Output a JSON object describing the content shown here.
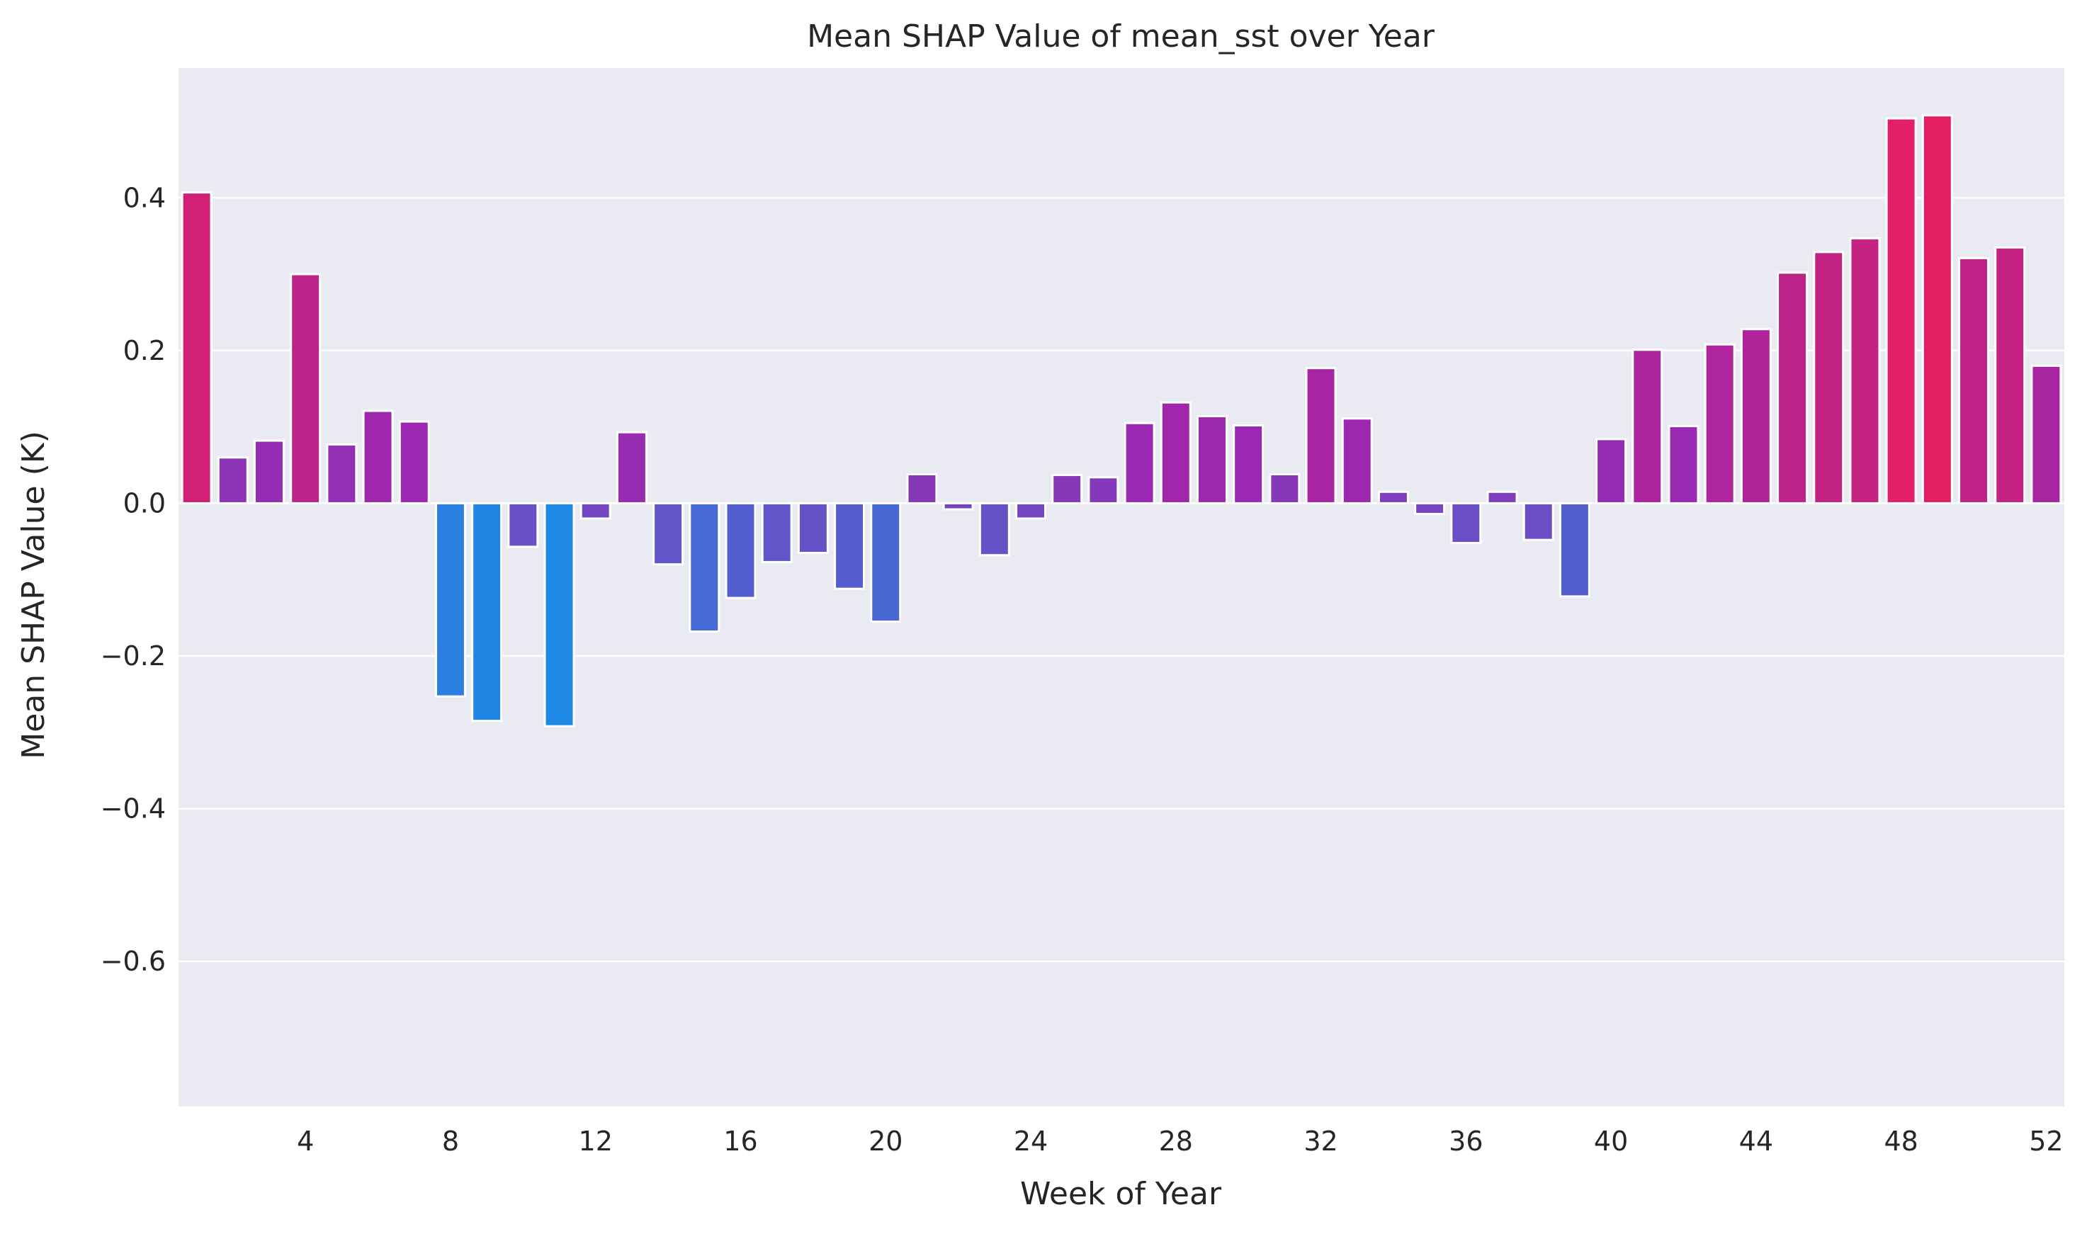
{
  "chart_data": {
    "type": "bar",
    "title": "Mean SHAP Value of mean_sst over Year",
    "xlabel": "Week of Year",
    "ylabel": "Mean SHAP Value (K)",
    "categories": [
      1,
      2,
      3,
      4,
      5,
      6,
      7,
      8,
      9,
      10,
      11,
      12,
      13,
      14,
      15,
      16,
      17,
      18,
      19,
      20,
      21,
      22,
      23,
      24,
      25,
      26,
      27,
      28,
      29,
      30,
      31,
      32,
      33,
      34,
      35,
      36,
      37,
      38,
      39,
      40,
      41,
      42,
      43,
      44,
      45,
      46,
      47,
      48,
      49,
      50,
      51,
      52
    ],
    "values": [
      0.407,
      0.06,
      0.082,
      0.3,
      0.077,
      0.121,
      0.107,
      -0.253,
      -0.285,
      -0.057,
      -0.292,
      -0.02,
      0.093,
      -0.08,
      -0.168,
      -0.124,
      -0.077,
      -0.065,
      -0.112,
      -0.155,
      0.038,
      -0.008,
      -0.068,
      -0.02,
      0.037,
      0.034,
      0.105,
      0.132,
      0.114,
      0.102,
      0.038,
      0.177,
      0.111,
      0.015,
      -0.014,
      -0.052,
      0.015,
      -0.048,
      -0.122,
      0.084,
      0.201,
      0.101,
      0.208,
      0.228,
      0.302,
      0.329,
      0.347,
      0.504,
      0.508,
      0.321,
      0.335,
      0.18
    ],
    "x_tick_labels": [
      "4",
      "8",
      "12",
      "16",
      "20",
      "24",
      "28",
      "32",
      "36",
      "40",
      "44",
      "48",
      "52"
    ],
    "y_tick_labels": [
      "0.4",
      "0.2",
      "0.0",
      "−0.2",
      "−0.4",
      "−0.6"
    ],
    "ylim": [
      -0.79,
      0.57
    ],
    "grid": true,
    "background": "#eaeaf2",
    "colors": {
      "positive_max": "#e31e63",
      "negative_max": "#1e88e5",
      "bar_edge": "#ffffff"
    }
  }
}
